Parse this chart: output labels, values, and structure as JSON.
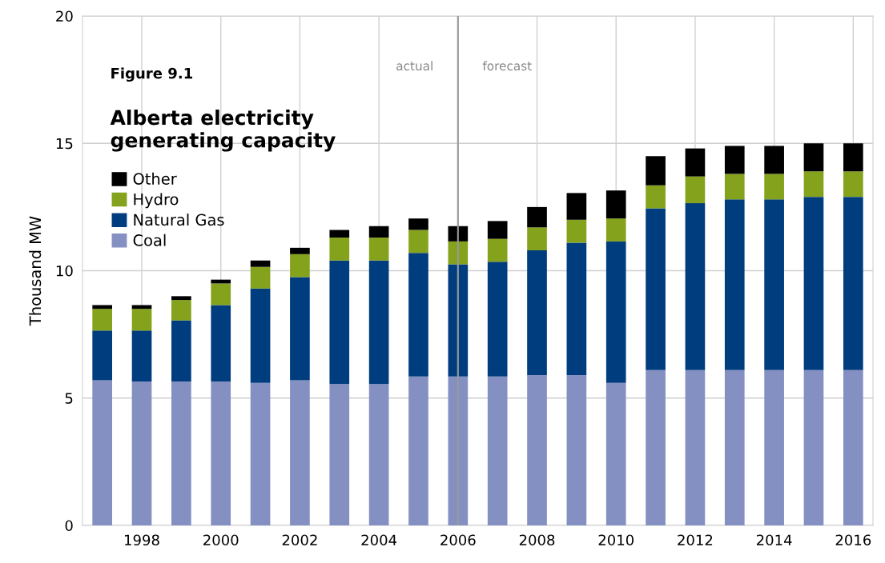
{
  "chart_data": {
    "type": "bar",
    "stacked": true,
    "title": "Figure 9.1",
    "subtitle": "Alberta electricity\ngenerating capacity",
    "ylabel": "Thousand MW",
    "x": [
      1997,
      1998,
      1999,
      2000,
      2001,
      2002,
      2003,
      2004,
      2005,
      2006,
      2007,
      2008,
      2009,
      2010,
      2011,
      2012,
      2013,
      2014,
      2015,
      2016
    ],
    "series": [
      {
        "name": "Coal",
        "color": "#8590c2",
        "values": [
          5.7,
          5.65,
          5.65,
          5.65,
          5.6,
          5.7,
          5.55,
          5.55,
          5.85,
          5.85,
          5.85,
          5.9,
          5.9,
          5.6,
          6.1,
          6.1,
          6.1,
          6.1,
          6.1,
          6.1
        ]
      },
      {
        "name": "Natural Gas",
        "color": "#003d7f",
        "values": [
          1.95,
          2.0,
          2.4,
          3.0,
          3.7,
          4.05,
          4.85,
          4.85,
          4.85,
          4.4,
          4.5,
          4.9,
          5.2,
          5.55,
          6.35,
          6.55,
          6.7,
          6.7,
          6.8,
          6.8
        ]
      },
      {
        "name": "Hydro",
        "color": "#84a21c",
        "values": [
          0.85,
          0.85,
          0.8,
          0.85,
          0.85,
          0.9,
          0.9,
          0.9,
          0.9,
          0.9,
          0.9,
          0.9,
          0.9,
          0.9,
          0.9,
          1.05,
          1.0,
          1.0,
          1.0,
          1.0
        ]
      },
      {
        "name": "Other",
        "color": "#000000",
        "values": [
          0.15,
          0.15,
          0.15,
          0.15,
          0.25,
          0.25,
          0.3,
          0.45,
          0.45,
          0.6,
          0.7,
          0.8,
          1.05,
          1.1,
          1.15,
          1.1,
          1.1,
          1.1,
          1.1,
          1.1
        ]
      }
    ],
    "xlim": [
      1996.5,
      2016.5
    ],
    "xticks": [
      1998,
      2000,
      2002,
      2004,
      2006,
      2008,
      2010,
      2012,
      2014,
      2016
    ],
    "ylim": [
      0,
      20
    ],
    "yticks": [
      0,
      5,
      10,
      15,
      20
    ],
    "ref_lines": [
      {
        "axis": "x",
        "value": 2006,
        "color": "#999999"
      }
    ],
    "annotations": [
      "actual",
      "forecast"
    ],
    "grid": true,
    "legend": "top left"
  }
}
